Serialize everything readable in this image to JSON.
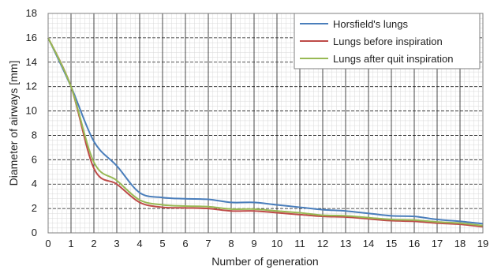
{
  "chart_data": {
    "type": "line",
    "title": "",
    "xlabel": "Number of generation",
    "ylabel": "Diameter of airways [mm]",
    "xlim": [
      0,
      19
    ],
    "ylim": [
      0,
      18
    ],
    "x_ticks": [
      0,
      1,
      2,
      3,
      4,
      5,
      6,
      7,
      8,
      9,
      10,
      11,
      12,
      13,
      14,
      15,
      16,
      17,
      18,
      19
    ],
    "y_ticks": [
      0,
      2,
      4,
      6,
      8,
      10,
      12,
      14,
      16,
      18
    ],
    "grid": true,
    "legend_position": "top-right",
    "series": [
      {
        "name": "Horsfield's lungs",
        "color": "#4a7ebb",
        "x": [
          0,
          1,
          2,
          3,
          4,
          5,
          6,
          7,
          8,
          9,
          10,
          11,
          12,
          13,
          14,
          15,
          16,
          17,
          18,
          19
        ],
        "values": [
          16,
          12,
          7.5,
          5.5,
          3.3,
          2.9,
          2.8,
          2.75,
          2.5,
          2.5,
          2.3,
          2.1,
          1.9,
          1.8,
          1.6,
          1.4,
          1.35,
          1.1,
          0.95,
          0.75
        ]
      },
      {
        "name": "Lungs before inspiration",
        "color": "#be4b48",
        "x": [
          0,
          1,
          2,
          3,
          4,
          5,
          6,
          7,
          8,
          9,
          10,
          11,
          12,
          13,
          14,
          15,
          16,
          17,
          18,
          19
        ],
        "values": [
          16,
          12,
          5.3,
          4.0,
          2.5,
          2.1,
          2.05,
          2.0,
          1.8,
          1.8,
          1.65,
          1.5,
          1.35,
          1.3,
          1.15,
          1.0,
          0.95,
          0.8,
          0.7,
          0.5
        ]
      },
      {
        "name": "Lungs after quit inspiration",
        "color": "#98b954",
        "x": [
          0,
          1,
          2,
          3,
          4,
          5,
          6,
          7,
          8,
          9,
          10,
          11,
          12,
          13,
          14,
          15,
          16,
          17,
          18,
          19
        ],
        "values": [
          16,
          12,
          5.8,
          4.3,
          2.7,
          2.3,
          2.2,
          2.15,
          1.95,
          1.95,
          1.8,
          1.65,
          1.45,
          1.4,
          1.25,
          1.1,
          1.05,
          0.9,
          0.8,
          0.6
        ]
      }
    ]
  }
}
